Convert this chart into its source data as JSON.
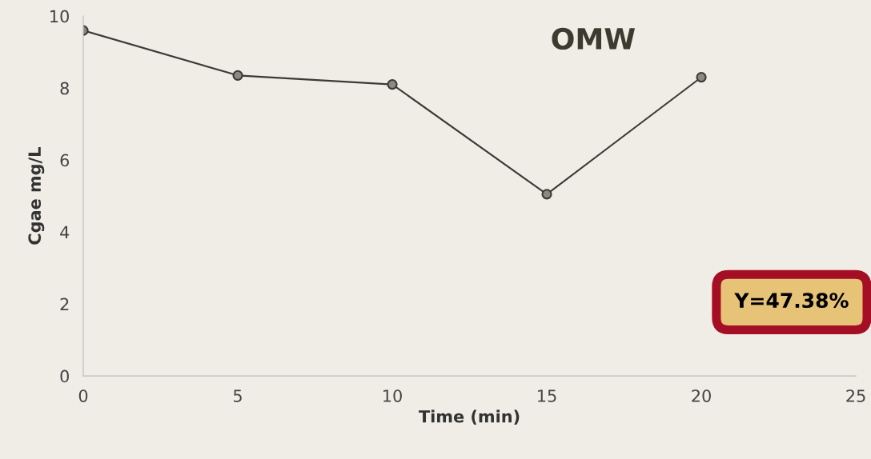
{
  "chart_data": {
    "type": "line",
    "title": "OMW",
    "xlabel": "Time (min)",
    "ylabel": "Cgae mg/L",
    "x": [
      0,
      5,
      10,
      15,
      20
    ],
    "series": [
      {
        "color": "#3b3b36",
        "values": [
          9.6,
          8.35,
          8.1,
          5.05,
          8.3
        ]
      }
    ],
    "xlim": [
      0,
      25
    ],
    "xticks": [
      0,
      5,
      10,
      15,
      20,
      25
    ],
    "ylim": [
      0,
      10
    ],
    "yticks": [
      0,
      2,
      4,
      6,
      8,
      10
    ],
    "grid": false,
    "legend": false,
    "marker": "circle",
    "line_style": "solid",
    "annotations": [
      "Y=47.38%"
    ]
  }
}
